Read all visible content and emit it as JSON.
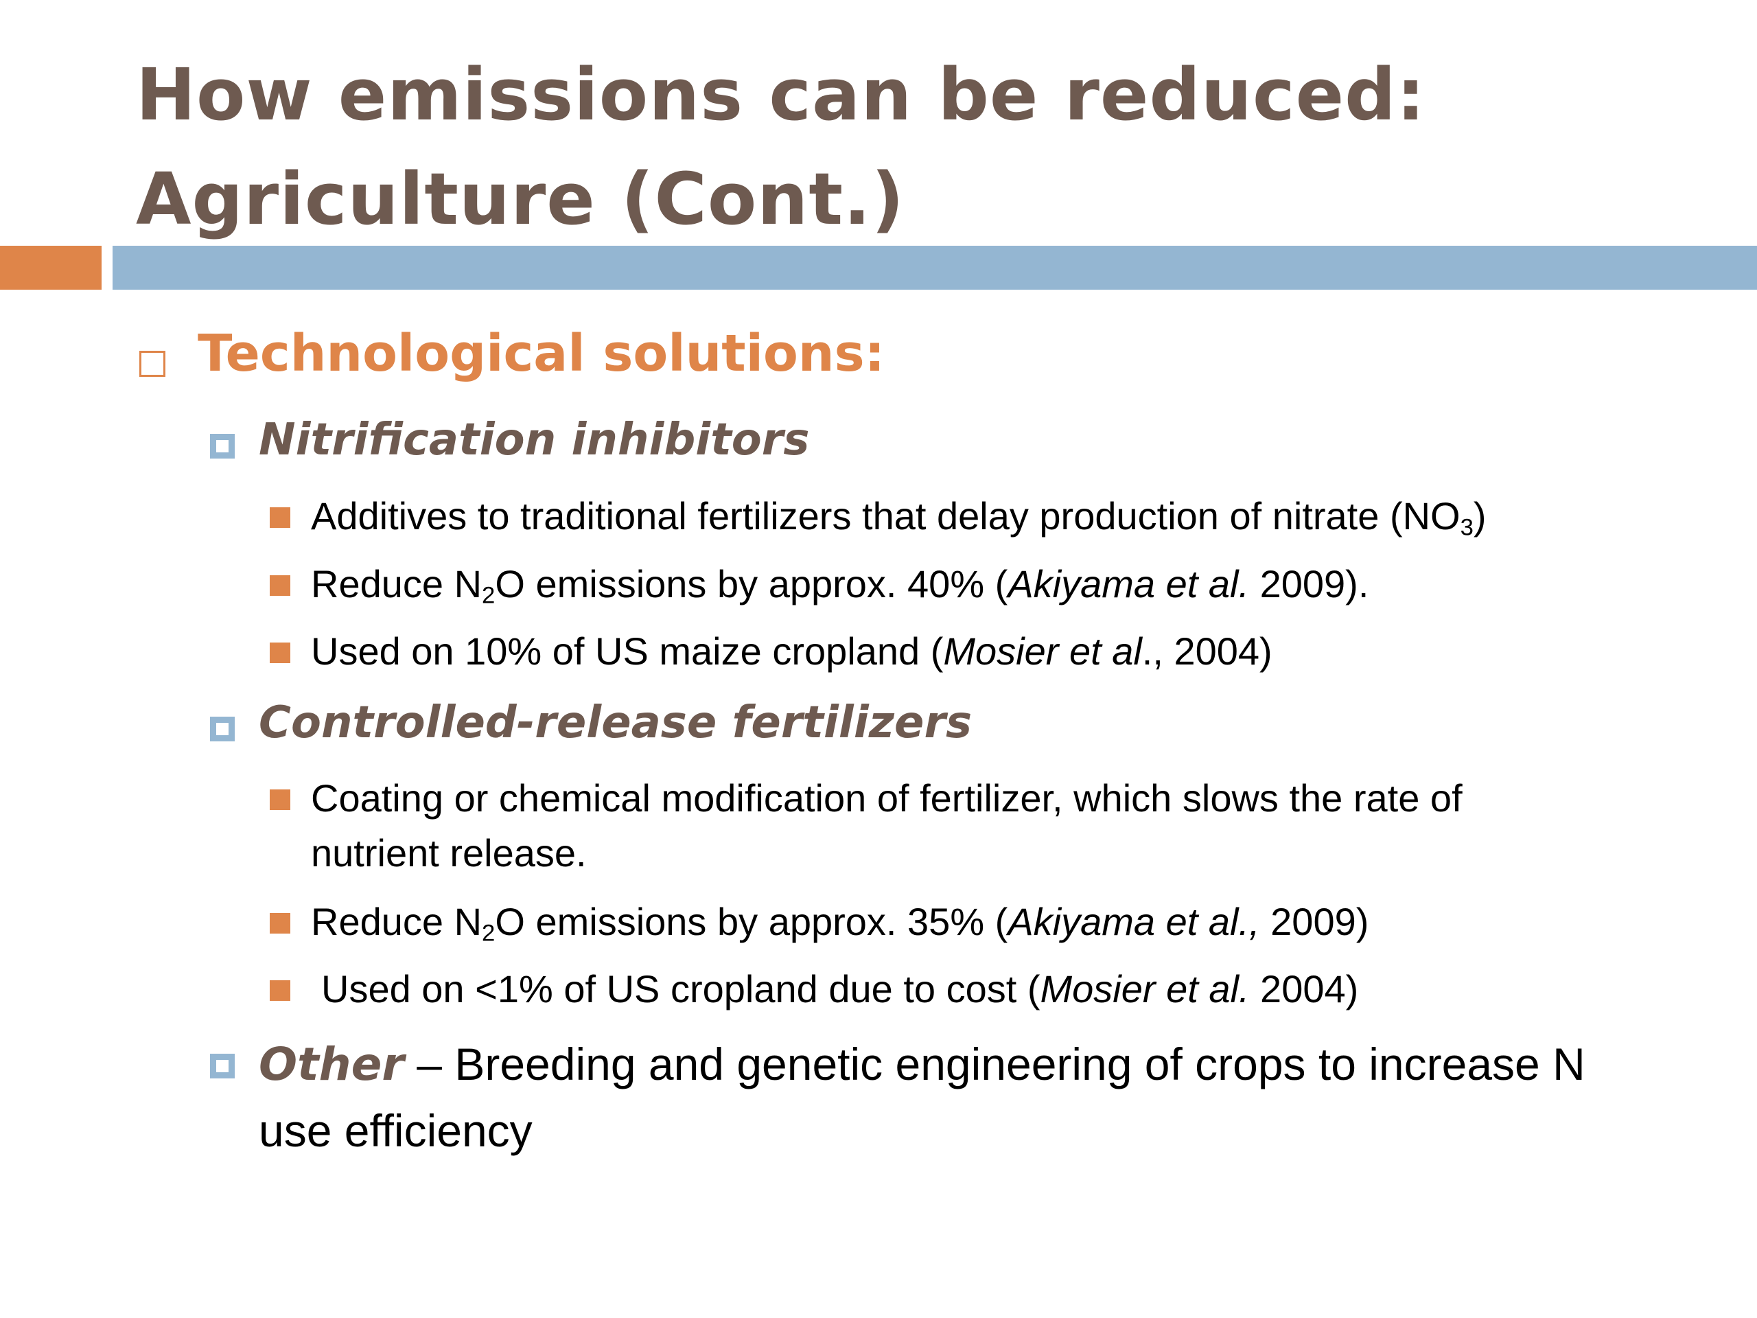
{
  "slide": {
    "title_line1": "How emissions can be reduced:",
    "title_line2": "Agriculture (Cont.)",
    "colors": {
      "title": "#6e5a50",
      "accent_orange": "#df8549",
      "accent_blue": "#94b6d2"
    },
    "section": {
      "label": "Technological solutions:"
    },
    "nitrification": {
      "label": "Nitrification inhibitors",
      "item1": {
        "text": "Additives to traditional fertilizers that delay production of nitrate (NO",
        "sub": "3",
        "end": ")"
      },
      "item2": {
        "pre": "Reduce N",
        "sub": "2",
        "mid": "O emissions by approx. 40% (",
        "cite": "Akiyama et al.",
        "end": " 2009)."
      },
      "item3": {
        "pre": "Used on 10% of US maize cropland (",
        "cite": "Mosier et al",
        "end": "., 2004)"
      }
    },
    "controlled_release": {
      "label": "Controlled-release fertilizers",
      "item1": {
        "line1": "Coating or chemical modification of fertilizer, which slows the rate of",
        "line2": "nutrient release."
      },
      "item2": {
        "pre": "Reduce N",
        "sub": "2",
        "mid": "O emissions by approx. 35% (",
        "cite": "Akiyama et al.,",
        "end": " 2009)"
      },
      "item3": {
        "pre": "Used on <1% of US cropland due to cost (",
        "cite": "Mosier et al.",
        "end": " 2004)"
      }
    },
    "other": {
      "label": "Other",
      "line1": " – Breeding and genetic engineering of crops to increase N",
      "line2": "use efficiency"
    }
  }
}
